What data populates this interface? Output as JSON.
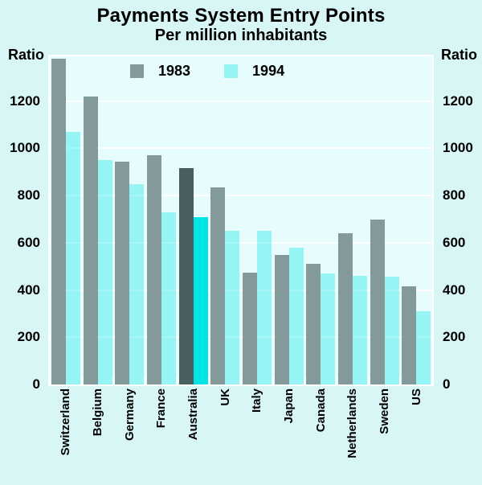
{
  "header": {
    "title": "Payments System Entry Points",
    "subtitle": "Per million inhabitants"
  },
  "axis": {
    "unit_left": "Ratio",
    "unit_right": "Ratio",
    "ticks": [
      0,
      200,
      400,
      600,
      800,
      1000,
      1200
    ]
  },
  "legend": {
    "items": [
      {
        "label": "1983"
      },
      {
        "label": "1994"
      }
    ]
  },
  "chart_data": {
    "type": "bar",
    "title": "Payments System Entry Points",
    "subtitle": "Per million inhabitants",
    "ylabel": "Ratio",
    "ylim": [
      0,
      1390
    ],
    "yticks": [
      0,
      200,
      400,
      600,
      800,
      1000,
      1200
    ],
    "grid": "horizontal",
    "legend_position": "top-inside",
    "categories": [
      "Switzerland",
      "Belgium",
      "Germany",
      "France",
      "Australia",
      "UK",
      "Italy",
      "Japan",
      "Canada",
      "Netherlands",
      "Sweden",
      "US"
    ],
    "series": [
      {
        "name": "1983",
        "values": [
          1380,
          1220,
          945,
          970,
          915,
          835,
          475,
          550,
          510,
          640,
          700,
          415
        ]
      },
      {
        "name": "1994",
        "values": [
          1070,
          950,
          850,
          730,
          710,
          650,
          650,
          580,
          470,
          460,
          455,
          310
        ]
      }
    ],
    "highlight_category": "Australia",
    "colors": {
      "series_1983": "#84999a",
      "series_1994": "rgba(0,228,228,0.35)",
      "highlight_1983": "#4a6060",
      "highlight_1994": "#00e4e4",
      "page_background": "#d9f6f6",
      "plot_background": "#e6fcfd",
      "grid": "#ffffff",
      "text": "#000000"
    }
  }
}
